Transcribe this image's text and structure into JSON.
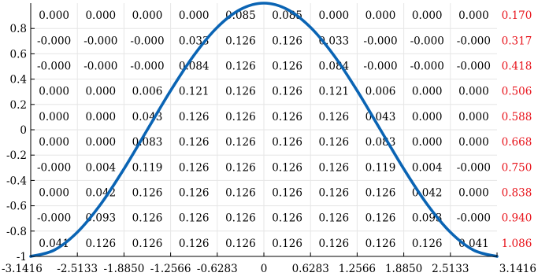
{
  "chart_data": {
    "type": "line",
    "title": "",
    "xlabel": "",
    "ylabel": "",
    "xlim": [
      -3.1416,
      3.1416
    ],
    "ylim": [
      -1,
      1
    ],
    "x_ticks": [
      -3.1416,
      -2.5133,
      -1.885,
      -1.2566,
      -0.6283,
      0,
      0.6283,
      1.2566,
      1.885,
      2.5133,
      3.1416
    ],
    "x_tick_labels": [
      "-3.1416",
      "-2.5133",
      "-1.8850",
      "-1.2566",
      "-0.6283",
      "0",
      "0.6283",
      "1.2566",
      "1.8850",
      "2.5133",
      "3.1416"
    ],
    "y_ticks": [
      -1,
      -0.8,
      -0.6,
      -0.4,
      -0.2,
      0,
      0.2,
      0.4,
      0.6,
      0.8
    ],
    "y_tick_labels": [
      "-1",
      "-0.8",
      "-0.6",
      "-0.4",
      "-0.2",
      "0",
      "0.2",
      "0.4",
      "0.6",
      "0.8"
    ],
    "grid": true,
    "series": [
      {
        "x": [
          -3.1416,
          -2.8274,
          -2.5133,
          -2.1991,
          -1.885,
          -1.5708,
          -1.2566,
          -0.9425,
          -0.6283,
          -0.3142,
          0,
          0.3142,
          0.6283,
          0.9425,
          1.2566,
          1.5708,
          1.885,
          2.1991,
          2.5133,
          2.8274,
          3.1416
        ],
        "y": [
          -1,
          -0.951,
          -0.809,
          -0.588,
          -0.309,
          0,
          0.309,
          0.588,
          0.809,
          0.951,
          1,
          0.951,
          0.809,
          0.588,
          0.309,
          0,
          -0.309,
          -0.588,
          -0.809,
          -0.951,
          -1
        ],
        "color": "#0a64b4"
      }
    ],
    "cell_grid": {
      "rows": [
        [
          "0.000",
          "0.000",
          "0.000",
          "0.000",
          "0.085",
          "0.085",
          "0.000",
          "0.000",
          "0.000",
          "0.000"
        ],
        [
          "-0.000",
          "-0.000",
          "-0.000",
          "0.033",
          "0.126",
          "0.126",
          "0.033",
          "-0.000",
          "-0.000",
          "-0.000"
        ],
        [
          "-0.000",
          "-0.000",
          "-0.000",
          "0.084",
          "0.126",
          "0.126",
          "0.084",
          "-0.000",
          "-0.000",
          "-0.000"
        ],
        [
          "0.000",
          "0.000",
          "0.006",
          "0.121",
          "0.126",
          "0.126",
          "0.121",
          "0.006",
          "0.000",
          "0.000"
        ],
        [
          "0.000",
          "0.000",
          "0.043",
          "0.126",
          "0.126",
          "0.126",
          "0.126",
          "0.043",
          "0.000",
          "0.000"
        ],
        [
          "0.000",
          "0.000",
          "0.083",
          "0.126",
          "0.126",
          "0.126",
          "0.126",
          "0.083",
          "0.000",
          "0.000"
        ],
        [
          "-0.000",
          "0.004",
          "0.119",
          "0.126",
          "0.126",
          "0.126",
          "0.126",
          "0.119",
          "0.004",
          "-0.000"
        ],
        [
          "0.000",
          "0.042",
          "0.126",
          "0.126",
          "0.126",
          "0.126",
          "0.126",
          "0.126",
          "0.042",
          "0.000"
        ],
        [
          "-0.000",
          "0.093",
          "0.126",
          "0.126",
          "0.126",
          "0.126",
          "0.126",
          "0.126",
          "0.093",
          "-0.000"
        ],
        [
          "0.041",
          "0.126",
          "0.126",
          "0.126",
          "0.126",
          "0.126",
          "0.126",
          "0.126",
          "0.126",
          "0.041"
        ]
      ],
      "row_sums": [
        "0.170",
        "0.317",
        "0.418",
        "0.506",
        "0.588",
        "0.668",
        "0.750",
        "0.838",
        "0.940",
        "1.086"
      ]
    }
  },
  "colors": {
    "curve": "#0a64b4",
    "row_sum": "#e8141c",
    "grid": "#e6e6e6",
    "axis": "#000000"
  }
}
